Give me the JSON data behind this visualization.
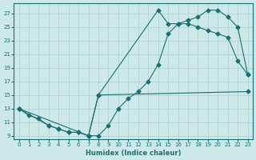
{
  "xlabel": "Humidex (Indice chaleur)",
  "xlim": [
    -0.5,
    23.5
  ],
  "ylim": [
    8.5,
    28.5
  ],
  "xticks": [
    0,
    1,
    2,
    3,
    4,
    5,
    6,
    7,
    8,
    9,
    10,
    11,
    12,
    13,
    14,
    15,
    16,
    17,
    18,
    19,
    20,
    21,
    22,
    23
  ],
  "yticks": [
    9,
    11,
    13,
    15,
    17,
    19,
    21,
    23,
    25,
    27
  ],
  "bg_color": "#cce8e8",
  "grid_color": "#aad0d0",
  "line_color": "#1a7070",
  "line1_x": [
    0,
    1,
    2,
    3,
    4,
    5,
    6,
    7,
    8,
    9,
    10,
    11,
    12,
    13,
    14,
    15,
    16,
    17,
    18,
    19,
    20,
    21,
    22,
    23
  ],
  "line1_y": [
    13,
    12,
    11.5,
    10.5,
    10,
    9.5,
    9.5,
    9,
    9.0,
    10.5,
    13.0,
    14.5,
    15.5,
    17.0,
    19.5,
    24.0,
    25.5,
    26.0,
    26.5,
    27.5,
    27.5,
    26.5,
    25.0,
    18.0
  ],
  "line2_x": [
    0,
    3,
    4,
    5,
    6,
    7,
    8,
    14,
    15,
    16,
    17,
    18,
    19,
    20,
    21,
    22,
    23
  ],
  "line2_y": [
    13,
    10.5,
    10.0,
    9.5,
    9.5,
    9.0,
    15.0,
    27.5,
    25.5,
    25.5,
    25.5,
    25.0,
    24.5,
    24.0,
    23.5,
    20.0,
    18.0
  ],
  "line3_x": [
    0,
    7,
    8,
    23
  ],
  "line3_y": [
    13,
    9.0,
    15.0,
    15.5
  ],
  "marker": "D",
  "markersize": 2.5,
  "linewidth": 0.8
}
